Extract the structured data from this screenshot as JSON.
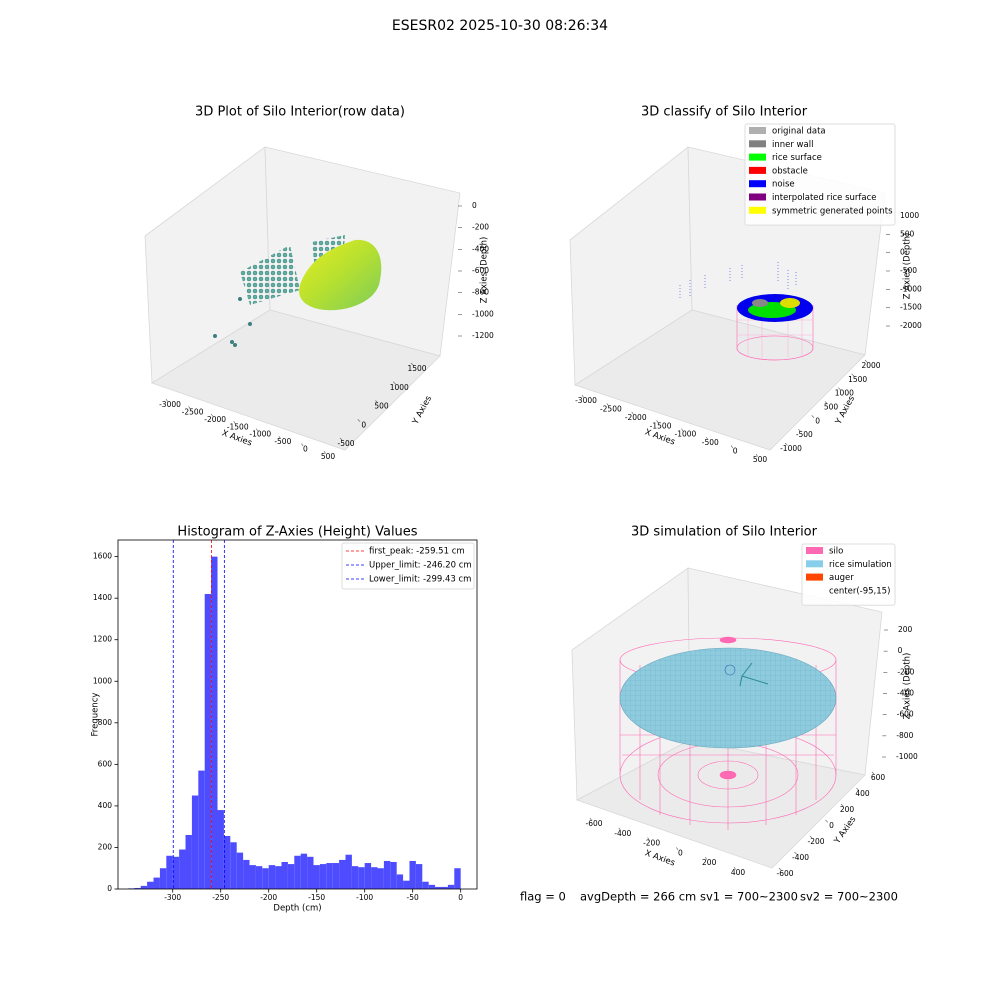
{
  "title": "ESESR02 2025-10-30 08:26:34",
  "chart_data": [
    {
      "type": "scatter3d",
      "title": "3D Plot of Silo Interior(row data)",
      "xlabel": "X Axies",
      "ylabel": "Y Axies",
      "zlabel": "Z Axies (Depth)",
      "xlim": [
        -3000,
        500
      ],
      "xticks": [
        -3000,
        -2500,
        -2000,
        -1500,
        -1000,
        -500,
        0,
        500
      ],
      "ylim": [
        -500,
        1500
      ],
      "yticks": [
        -500,
        0,
        500,
        1000,
        1500
      ],
      "zlim": [
        -1200,
        0
      ],
      "zticks": [
        0,
        -200,
        -400,
        -600,
        -800,
        -1000,
        -1200
      ]
    },
    {
      "type": "scatter3d",
      "title": "3D classify of Silo Interior",
      "xlabel": "X Axies",
      "ylabel": "Y Axies",
      "zlabel": "Z Axies (Depth)",
      "xlim": [
        -3000,
        500
      ],
      "xticks": [
        -3000,
        -2500,
        -2000,
        -1500,
        -1000,
        -500,
        0,
        500
      ],
      "ylim": [
        -1000,
        2000
      ],
      "yticks": [
        -1000,
        -500,
        0,
        500,
        1000,
        1500,
        2000
      ],
      "zlim": [
        -2000,
        1000
      ],
      "zticks": [
        1000,
        500,
        0,
        -500,
        -1000,
        -1500,
        -2000
      ],
      "legend": [
        {
          "name": "original data",
          "color": "#b0b0b0"
        },
        {
          "name": "inner wall",
          "color": "#808080"
        },
        {
          "name": "rice surface",
          "color": "#00ff00"
        },
        {
          "name": "obstacle",
          "color": "#ff0000"
        },
        {
          "name": "noise",
          "color": "#0000ff"
        },
        {
          "name": "interpolated rice surface",
          "color": "#800080"
        },
        {
          "name": "symmetric generated points",
          "color": "#ffff00"
        }
      ]
    },
    {
      "type": "histogram",
      "title": "Histogram of Z-Axies (Height) Values",
      "xlabel": "Depth (cm)",
      "ylabel": "Frequency",
      "color": "#4d4dff",
      "bins": [
        -346.67,
        -340,
        -333.33,
        -326.67,
        -320,
        -313.33,
        -306.67,
        -300,
        -293.33,
        -286.67,
        -280,
        -273.33,
        -266.67,
        -260,
        -253.33,
        -246.67,
        -240,
        -233.33,
        -226.67,
        -220,
        -213.33,
        -206.67,
        -200,
        -193.33,
        -186.67,
        -180,
        -173.33,
        -166.67,
        -160,
        -153.33,
        -146.67,
        -140,
        -133.33,
        -126.67,
        -120,
        -113.33,
        -106.67,
        -100,
        -93.33,
        -86.67,
        -80,
        -73.33,
        -66.67,
        -60,
        -53.33,
        -46.67,
        -40,
        -33.33,
        -26.67,
        -20,
        -13.33,
        -6.67,
        0
      ],
      "counts": [
        3,
        5,
        15,
        35,
        55,
        100,
        160,
        155,
        190,
        260,
        450,
        570,
        1420,
        1600,
        380,
        255,
        225,
        175,
        140,
        115,
        110,
        100,
        115,
        110,
        130,
        120,
        160,
        170,
        155,
        115,
        120,
        125,
        125,
        140,
        165,
        110,
        105,
        125,
        105,
        100,
        135,
        130,
        70,
        40,
        135,
        120,
        35,
        20,
        10,
        10,
        20,
        100
      ],
      "xlim": [
        -357,
        17
      ],
      "xticks": [
        -300,
        -250,
        -200,
        -150,
        -100,
        -50,
        0
      ],
      "ylim": [
        0,
        1680
      ],
      "yticks": [
        0,
        200,
        400,
        600,
        800,
        1000,
        1200,
        1400,
        1600
      ],
      "vlines": [
        {
          "value": -259.51,
          "label": "first_peak: -259.51 cm",
          "color": "#ff0000"
        },
        {
          "value": -246.2,
          "label": "Upper_limit: -246.20 cm",
          "color": "#0000ff"
        },
        {
          "value": -299.43,
          "label": "Lower_limit: -299.43 cm",
          "color": "#0000ff"
        }
      ]
    },
    {
      "type": "surface3d",
      "title": "3D simulation of Silo Interior",
      "xlabel": "X Axies",
      "ylabel": "Y Axies",
      "zlabel": "Z Axies (Depth)",
      "xlim": [
        -600,
        400
      ],
      "xticks": [
        -600,
        -400,
        -200,
        0,
        200,
        400
      ],
      "ylim": [
        -600,
        600
      ],
      "yticks": [
        -600,
        -400,
        -200,
        0,
        200,
        400,
        600
      ],
      "zlim": [
        -1000,
        200
      ],
      "zticks": [
        200,
        0,
        -200,
        -400,
        -600,
        -800,
        -1000
      ],
      "legend": [
        {
          "name": "silo",
          "color": "#ff69b4"
        },
        {
          "name": "rice simulation",
          "color": "#87ceeb"
        },
        {
          "name": "auger",
          "color": "#ff4500"
        },
        {
          "name": "center(-95,15)",
          "color": "#ffffff"
        }
      ]
    }
  ],
  "status": [
    "flag = 0",
    "avgDepth = 266 cm",
    "sv1 = 700~2300",
    "sv2 = 700~2300"
  ]
}
